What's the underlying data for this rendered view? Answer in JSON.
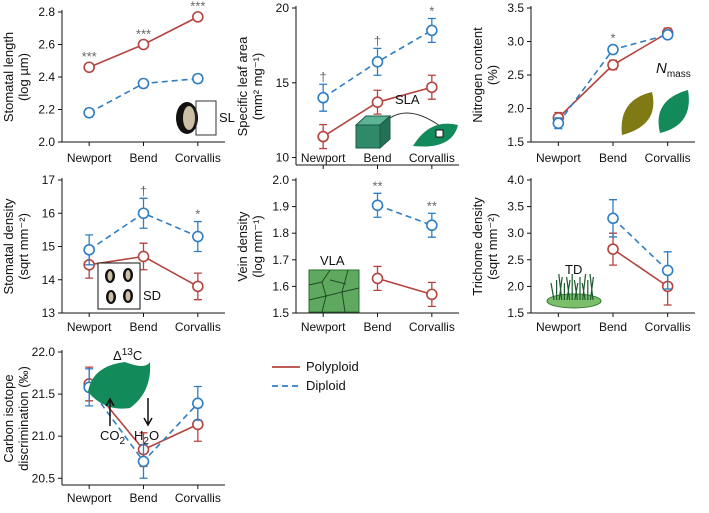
{
  "chart_data": [
    {
      "type": "line",
      "ylabel": [
        "Stomatal length",
        "(log µm)"
      ],
      "categories": [
        "Newport",
        "Bend",
        "Corvallis"
      ],
      "ylim": [
        2.0,
        2.8
      ],
      "yticks": [
        {
          "value": 2.0,
          "label": "2.0"
        },
        2.2,
        2.4,
        2.6,
        2.8
      ],
      "annotations": [
        "***",
        "***",
        "***"
      ],
      "inset_labels": [
        [
          "SL"
        ]
      ],
      "series": [
        {
          "name": "Polyploid",
          "color": "#b5443f",
          "dashed": false,
          "values": [
            2.46,
            2.6,
            2.77
          ],
          "errors": [
            0.02,
            0.02,
            0.02
          ]
        },
        {
          "name": "Diploid",
          "color": "#2f7ec4",
          "dashed": true,
          "values": [
            2.18,
            2.36,
            2.39
          ],
          "errors": [
            0.025,
            0.025,
            0.025
          ]
        }
      ]
    },
    {
      "type": "line",
      "ylabel": [
        "Specific leaf area",
        "(mm² mg⁻¹)"
      ],
      "categories": [
        "Newport",
        "Bend",
        "Corvallis"
      ],
      "ylim": [
        9.5,
        20
      ],
      "yticks": [
        10,
        15,
        20
      ],
      "annotations": [
        "†",
        "†",
        "*"
      ],
      "inset_labels": [
        [
          "SLA"
        ]
      ],
      "series": [
        {
          "name": "Polyploid",
          "color": "#b5443f",
          "dashed": false,
          "values": [
            11.4,
            13.7,
            14.7
          ],
          "errors": [
            0.8,
            0.8,
            0.8
          ]
        },
        {
          "name": "Diploid",
          "color": "#2f7ec4",
          "dashed": true,
          "values": [
            14.0,
            16.4,
            18.5
          ],
          "errors": [
            0.9,
            0.9,
            0.8
          ]
        }
      ]
    },
    {
      "type": "line",
      "ylabel": [
        "Nitrogen content",
        "(%)"
      ],
      "categories": [
        "Newport",
        "Bend",
        "Corvallis"
      ],
      "ylim": [
        1.5,
        3.5
      ],
      "yticks": [
        1.5,
        {
          "value": 2.0,
          "label": "2.0"
        },
        2.5,
        {
          "value": 3.0,
          "label": "3.0"
        },
        3.5
      ],
      "annotations": [
        null,
        "*",
        null
      ],
      "inset_labels": [
        [
          "N",
          "mass"
        ]
      ],
      "series": [
        {
          "name": "Polyploid",
          "color": "#b5443f",
          "dashed": false,
          "values": [
            1.86,
            2.65,
            3.13
          ],
          "errors": [
            0.08,
            0.07,
            0.07
          ]
        },
        {
          "name": "Diploid",
          "color": "#2f7ec4",
          "dashed": true,
          "values": [
            1.78,
            2.88,
            3.1
          ],
          "errors": [
            0.08,
            0.06,
            0.05
          ]
        }
      ]
    },
    {
      "type": "line",
      "ylabel": [
        "Stomatal density",
        "(sqrt mm⁻²)"
      ],
      "categories": [
        "Newport",
        "Bend",
        "Corvallis"
      ],
      "ylim": [
        13,
        17
      ],
      "yticks": [
        13,
        14,
        15,
        16,
        17
      ],
      "annotations": [
        null,
        "†",
        "*"
      ],
      "inset_labels": [
        [
          "SD"
        ]
      ],
      "series": [
        {
          "name": "Polyploid",
          "color": "#b5443f",
          "dashed": false,
          "values": [
            14.45,
            14.7,
            13.8
          ],
          "errors": [
            0.4,
            0.4,
            0.4
          ]
        },
        {
          "name": "Diploid",
          "color": "#2f7ec4",
          "dashed": true,
          "values": [
            14.9,
            16.0,
            15.3
          ],
          "errors": [
            0.45,
            0.45,
            0.45
          ]
        }
      ]
    },
    {
      "type": "line",
      "ylabel": [
        "Vein density",
        "(log mm⁻¹)"
      ],
      "categories": [
        "Newport",
        "Bend",
        "Corvallis"
      ],
      "ylim": [
        1.5,
        2.0
      ],
      "yticks": [
        1.5,
        1.6,
        1.7,
        1.8,
        1.9,
        {
          "value": 2.0,
          "label": "2.0"
        }
      ],
      "annotations": [
        null,
        "**",
        "**"
      ],
      "inset_labels": [
        [
          "VLA"
        ]
      ],
      "series": [
        {
          "name": "Polyploid",
          "color": "#b5443f",
          "dashed": false,
          "values": [
            null,
            1.63,
            1.57
          ],
          "errors": [
            null,
            0.045,
            0.045
          ]
        },
        {
          "name": "Diploid",
          "color": "#2f7ec4",
          "dashed": true,
          "values": [
            null,
            1.905,
            1.83
          ],
          "errors": [
            null,
            0.045,
            0.045
          ]
        }
      ]
    },
    {
      "type": "line",
      "ylabel": [
        "Trichome density",
        "(sqrt mm⁻²)"
      ],
      "categories": [
        "Newport",
        "Bend",
        "Corvallis"
      ],
      "ylim": [
        1.5,
        4.0
      ],
      "yticks": [
        1.5,
        {
          "value": 2.0,
          "label": "2.0"
        },
        2.5,
        {
          "value": 3.0,
          "label": "3.0"
        },
        3.5,
        {
          "value": 4.0,
          "label": "4.0"
        }
      ],
      "annotations": [
        null,
        null,
        null
      ],
      "inset_labels": [
        [
          "TD"
        ]
      ],
      "series": [
        {
          "name": "Polyploid",
          "color": "#b5443f",
          "dashed": false,
          "values": [
            null,
            2.7,
            2.0
          ],
          "errors": [
            null,
            0.3,
            0.35
          ]
        },
        {
          "name": "Diploid",
          "color": "#2f7ec4",
          "dashed": true,
          "values": [
            null,
            3.28,
            2.3
          ],
          "errors": [
            null,
            0.35,
            0.35
          ]
        }
      ]
    },
    {
      "type": "line",
      "ylabel": [
        "Carbon isotope",
        "discrimination (‰)"
      ],
      "categories": [
        "Newport",
        "Bend",
        "Corvallis"
      ],
      "ylim": [
        20.42,
        22.0
      ],
      "yticks": [
        20.5,
        {
          "value": 21.0,
          "label": "21.0"
        },
        21.5,
        {
          "value": 22.0,
          "label": "22.0"
        }
      ],
      "annotations": [
        null,
        null,
        null
      ],
      "inset_labels": [
        [
          "Δ",
          "13",
          "C"
        ],
        [
          "CO",
          "2"
        ],
        [
          "H",
          "2",
          "O"
        ]
      ],
      "series": [
        {
          "name": "Polyploid",
          "color": "#b5443f",
          "dashed": false,
          "values": [
            21.62,
            20.84,
            21.14
          ],
          "errors": [
            0.2,
            0.2,
            0.2
          ]
        },
        {
          "name": "Diploid",
          "color": "#2f7ec4",
          "dashed": true,
          "values": [
            21.58,
            20.7,
            21.39
          ],
          "errors": [
            0.22,
            0.2,
            0.2
          ]
        }
      ]
    }
  ]
}
